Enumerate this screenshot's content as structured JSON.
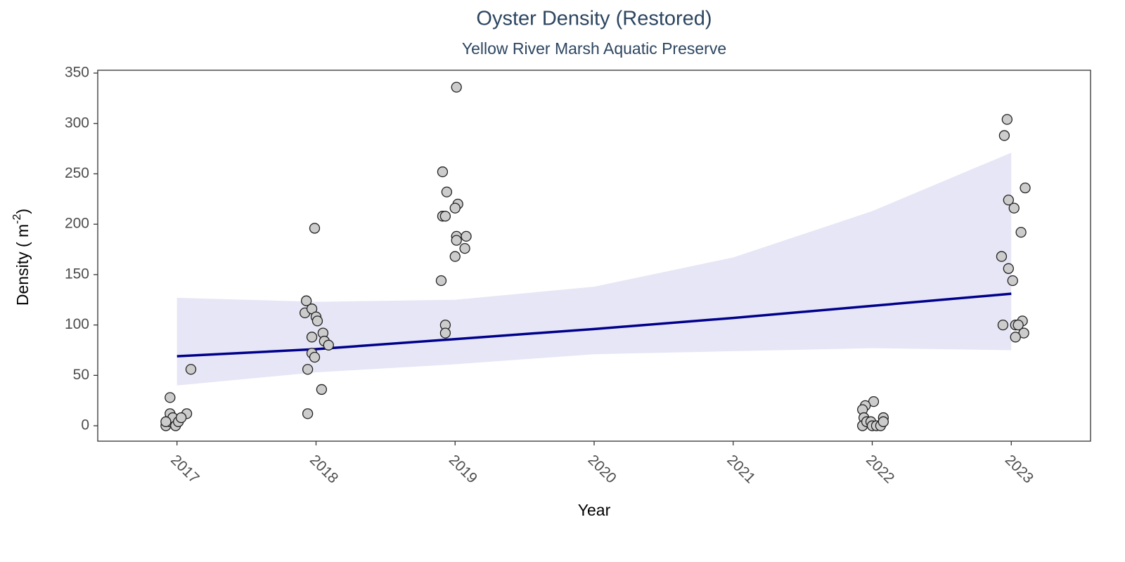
{
  "chart_data": {
    "type": "scatter",
    "title": "Oyster Density (Restored)",
    "subtitle": "Yellow River Marsh Aquatic Preserve",
    "x_label": "Year",
    "y_label": {
      "text": "Density ( m",
      "superscript": "-2",
      "suffix": ")"
    },
    "xlim": [
      2016.43,
      2023.57
    ],
    "xticks": [
      2017,
      2018,
      2019,
      2020,
      2021,
      2022,
      2023
    ],
    "ylim": [
      -15.3,
      352.8
    ],
    "yticks": [
      0,
      50,
      100,
      150,
      200,
      250,
      300,
      350
    ],
    "points": {
      "color": "#cccccc",
      "x": [
        2016.95,
        2016.95,
        2017.07,
        2017.1,
        2016.92,
        2016.95,
        2016.97,
        2016.99,
        2017.01,
        2017.03,
        2016.92,
        2017.93,
        2017.92,
        2017.97,
        2018.0,
        2018.01,
        2017.99,
        2017.97,
        2018.05,
        2018.06,
        2018.09,
        2017.97,
        2017.99,
        2017.94,
        2018.04,
        2017.94,
        2019.01,
        2018.91,
        2018.94,
        2019.02,
        2019.0,
        2018.91,
        2018.93,
        2019.01,
        2019.08,
        2019.01,
        2019.07,
        2019.0,
        2018.9,
        2018.93,
        2018.93,
        2022.01,
        2021.95,
        2021.93,
        2021.94,
        2021.93,
        2021.96,
        2021.99,
        2022.0,
        2022.03,
        2022.06,
        2022.08,
        2022.08,
        2022.97,
        2022.95,
        2022.98,
        2023.1,
        2023.02,
        2023.07,
        2022.93,
        2022.98,
        2023.01,
        2022.94,
        2023.08,
        2023.03,
        2023.05,
        2023.09,
        2023.03
      ],
      "values": [
        28,
        12,
        12,
        56,
        0,
        4,
        8,
        0,
        4,
        8,
        4,
        124,
        112,
        116,
        108,
        104,
        196,
        88,
        92,
        84,
        80,
        72,
        68,
        56,
        36,
        12,
        336,
        252,
        232,
        220,
        216,
        208,
        208,
        188,
        188,
        184,
        176,
        168,
        144,
        100,
        92,
        24,
        20,
        16,
        8,
        0,
        4,
        4,
        0,
        0,
        0,
        8,
        4,
        304,
        288,
        224,
        236,
        216,
        192,
        168,
        156,
        144,
        100,
        104,
        100,
        100,
        92,
        88
      ]
    },
    "trend": {
      "color": "#00008b",
      "band_color": "#e6e6f6",
      "x": [
        2017,
        2018,
        2019,
        2020,
        2021,
        2022,
        2023
      ],
      "values": [
        69,
        76,
        86,
        96,
        107,
        119,
        131
      ],
      "lower": [
        40,
        53,
        61,
        71,
        74,
        77,
        75
      ],
      "upper": [
        127,
        123,
        125,
        138,
        167,
        213,
        271
      ]
    }
  }
}
